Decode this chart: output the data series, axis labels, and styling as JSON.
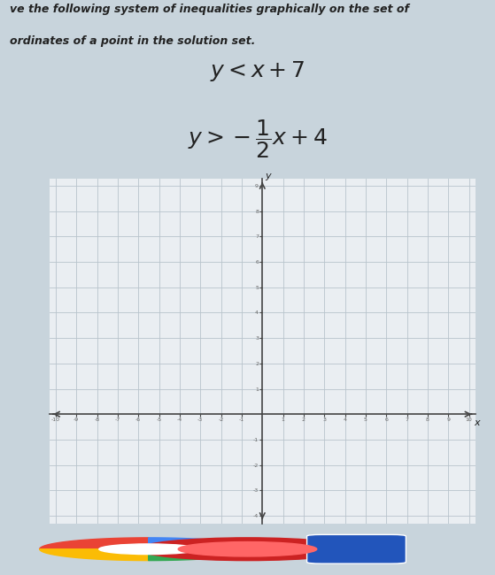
{
  "eq1": "$y < x + 7$",
  "eq2": "$y > -\\dfrac{1}{2}x + 4$",
  "instr1": "ve the following system of inequalities graphically on the set of",
  "instr2": "ordinates of a point in the solution set.",
  "xmin": -10,
  "xmax": 10,
  "ymin": -4,
  "ymax": 9,
  "grid_color": "#b8c4cc",
  "axis_color": "#444444",
  "plot_bg": "#eaeef2",
  "fig_bg": "#c8d4dc",
  "text_bg": "#e8edf2",
  "text_color": "#222222",
  "taskbar_color": "#b0bec5",
  "eq_fontsize": 18,
  "instr_fontsize": 9
}
